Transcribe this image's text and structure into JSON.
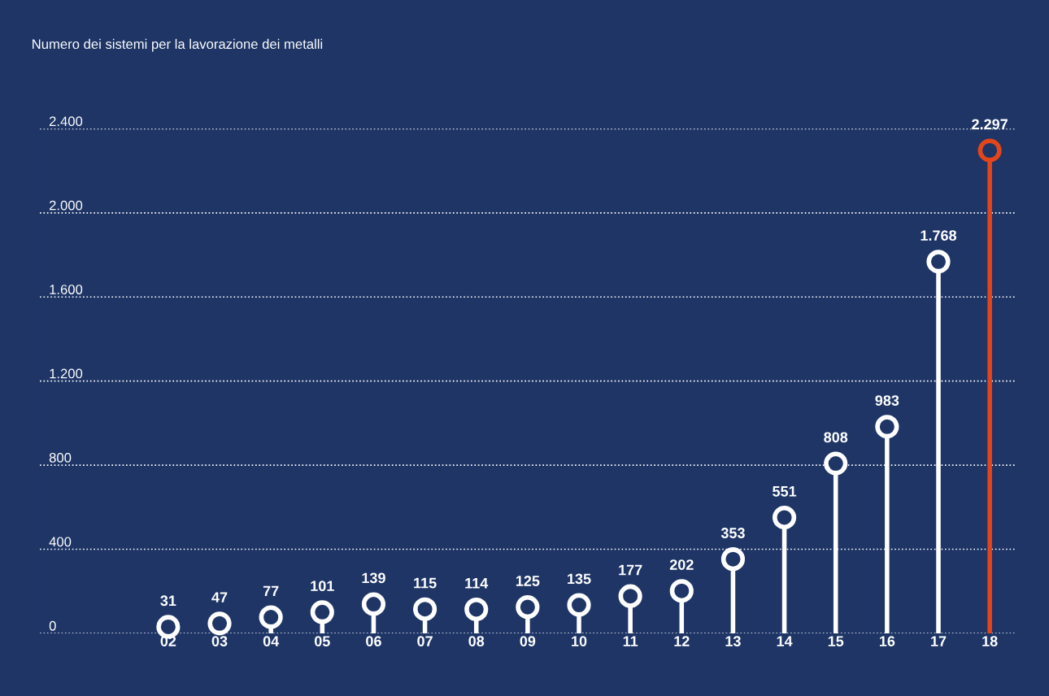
{
  "chart_data": {
    "type": "lollipop",
    "title": "Numero dei sistemi per la lavorazione dei metalli",
    "categories": [
      "02",
      "03",
      "04",
      "05",
      "06",
      "07",
      "08",
      "09",
      "10",
      "11",
      "12",
      "13",
      "14",
      "15",
      "16",
      "17",
      "18"
    ],
    "values": [
      31,
      47,
      77,
      101,
      139,
      115,
      114,
      125,
      135,
      177,
      202,
      353,
      551,
      808,
      983,
      1768,
      2297
    ],
    "value_labels": [
      "31",
      "47",
      "77",
      "101",
      "139",
      "115",
      "114",
      "125",
      "135",
      "177",
      "202",
      "353",
      "551",
      "808",
      "983",
      "1.768",
      "2.297"
    ],
    "colors": [
      "#ffffff",
      "#ffffff",
      "#ffffff",
      "#ffffff",
      "#ffffff",
      "#ffffff",
      "#ffffff",
      "#ffffff",
      "#ffffff",
      "#ffffff",
      "#ffffff",
      "#ffffff",
      "#ffffff",
      "#ffffff",
      "#ffffff",
      "#ffffff",
      "#e2461a"
    ],
    "ylim": [
      0,
      2400
    ],
    "yticks": [
      {
        "value": 0,
        "label": "0"
      },
      {
        "value": 400,
        "label": "400"
      },
      {
        "value": 800,
        "label": "800"
      },
      {
        "value": 1200,
        "label": "1.200"
      },
      {
        "value": 1600,
        "label": "1.600"
      },
      {
        "value": 2000,
        "label": "2.000"
      },
      {
        "value": 2400,
        "label": "2.400"
      }
    ],
    "grid": "y",
    "marker": "circle"
  }
}
